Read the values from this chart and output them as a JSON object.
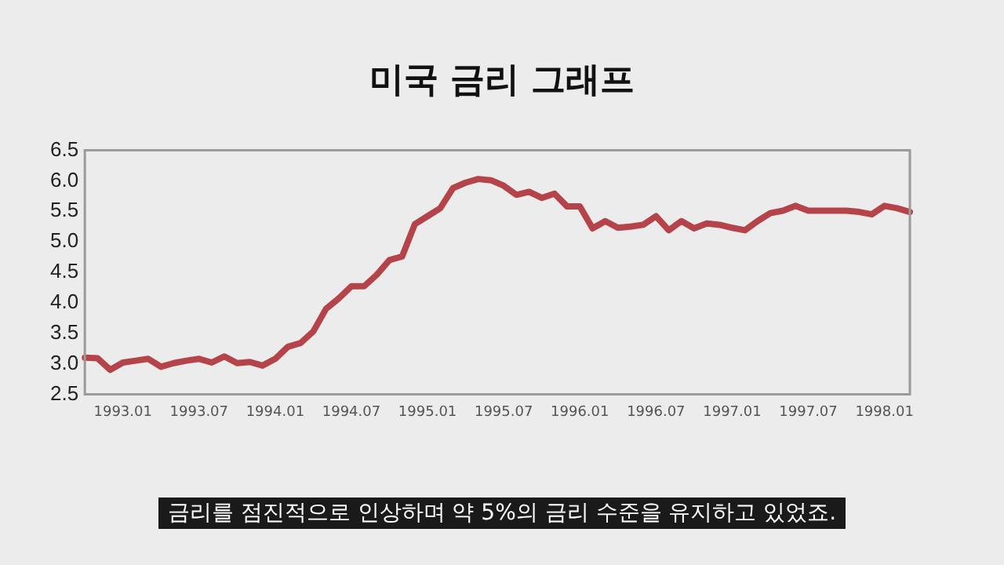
{
  "chart_data": {
    "type": "line",
    "title": "미국 금리 그래프",
    "categories": [
      null,
      null,
      null,
      "1993.01",
      null,
      null,
      null,
      null,
      null,
      "1993.07",
      null,
      null,
      null,
      null,
      null,
      "1994.01",
      null,
      null,
      null,
      null,
      null,
      "1994.07",
      null,
      null,
      null,
      null,
      null,
      "1995.01",
      null,
      null,
      null,
      null,
      null,
      "1995.07",
      null,
      null,
      null,
      null,
      null,
      "1996.01",
      null,
      null,
      null,
      null,
      null,
      "1996.07",
      null,
      null,
      null,
      null,
      null,
      "1997.01",
      null,
      null,
      null,
      null,
      null,
      "1997.07",
      null,
      null,
      null,
      null,
      null,
      "1998.01",
      null,
      null
    ],
    "series": [
      {
        "color": "#b5444a",
        "values": [
          3.1,
          3.09,
          2.9,
          3.02,
          3.05,
          3.08,
          2.95,
          3.01,
          3.05,
          3.08,
          3.02,
          3.12,
          3.01,
          3.03,
          2.97,
          3.08,
          3.28,
          3.34,
          3.53,
          3.9,
          4.07,
          4.27,
          4.27,
          4.46,
          4.7,
          4.76,
          5.29,
          5.42,
          5.55,
          5.88,
          5.97,
          6.03,
          6.01,
          5.92,
          5.77,
          5.82,
          5.72,
          5.79,
          5.58,
          5.58,
          5.22,
          5.34,
          5.23,
          5.25,
          5.28,
          5.42,
          5.19,
          5.34,
          5.22,
          5.3,
          5.28,
          5.23,
          5.19,
          5.34,
          5.47,
          5.51,
          5.59,
          5.51,
          5.51,
          5.51,
          5.51,
          5.49,
          5.45,
          5.59,
          5.55,
          5.49
        ]
      }
    ],
    "ylim": [
      2.5,
      6.5
    ],
    "yticks": [
      2.5,
      {
        "value": 3,
        "label": "3.0"
      },
      3.5,
      {
        "value": 4,
        "label": "4.0"
      },
      4.5,
      {
        "value": 5,
        "label": "5.0"
      },
      5.5,
      {
        "value": 6,
        "label": "6.0"
      },
      6.5
    ],
    "grid": false,
    "legend": false,
    "marker": "none",
    "line_style": "solid",
    "annotations": [
      "금리를 점진적으로 인상하며 약 5%의 금리 수준을 유지하고 있었죠."
    ]
  }
}
